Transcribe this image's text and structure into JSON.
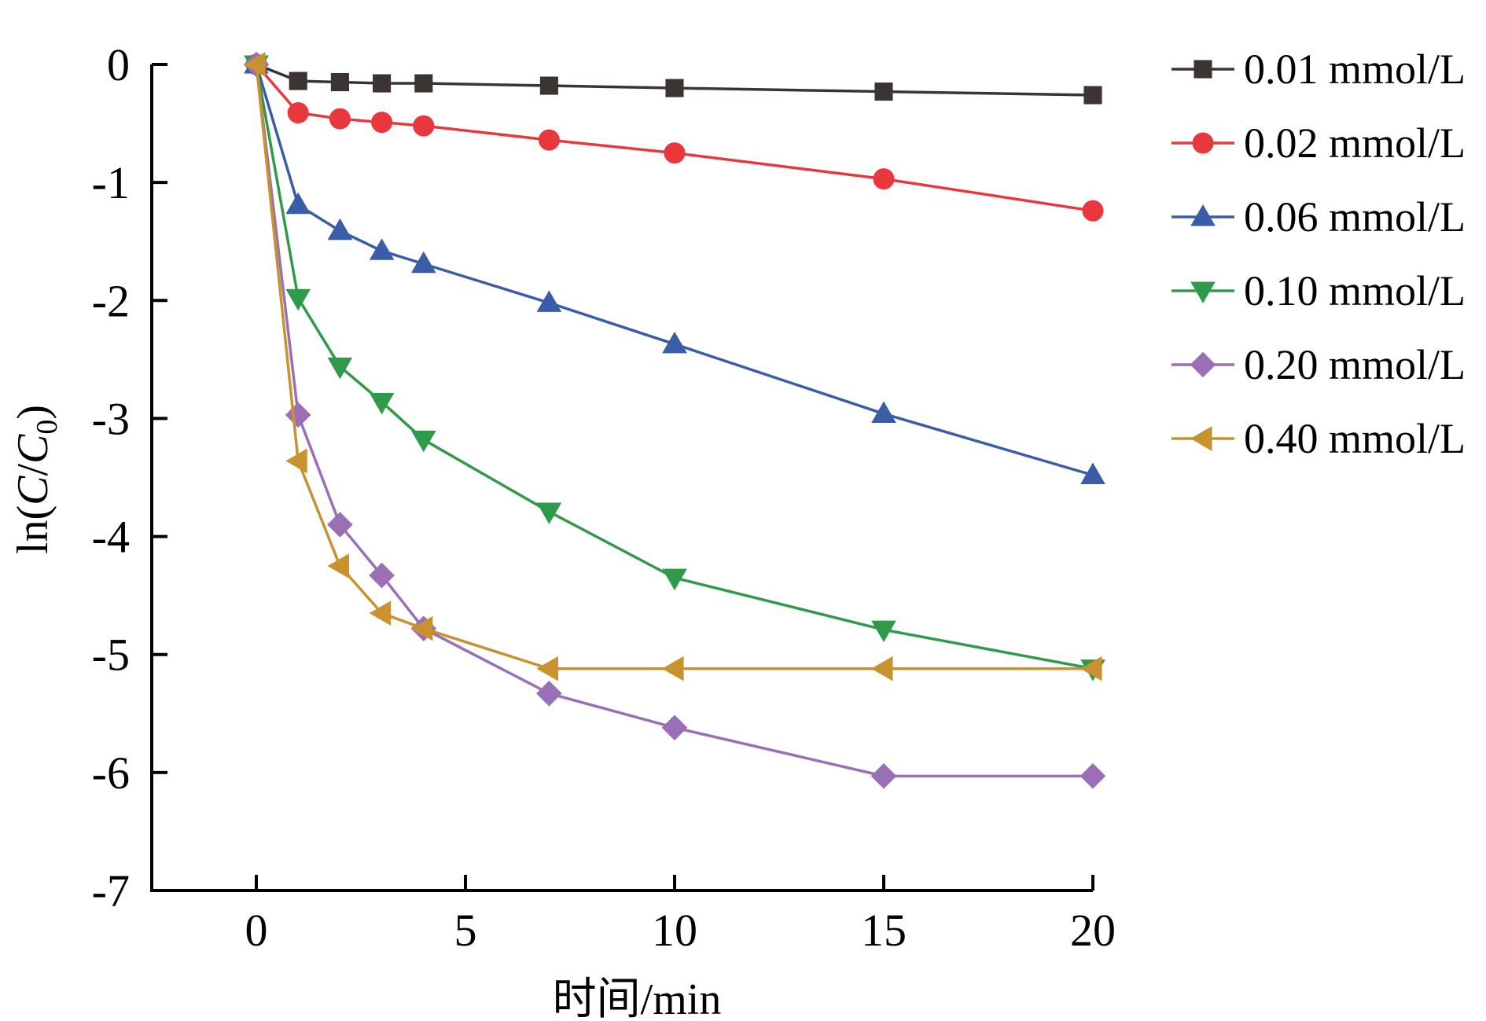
{
  "chart_data": {
    "type": "line",
    "title": "",
    "xlabel": "时间/min",
    "ylabel_parts": {
      "prefix": "ln(",
      "numerator": "C",
      "slash": "/",
      "denominator": "C",
      "denominator_sub": "0",
      "suffix": ")"
    },
    "xlim": [
      -2.5,
      20
    ],
    "ylim": [
      -7,
      0
    ],
    "xticks": [
      0,
      5,
      10,
      15,
      20
    ],
    "xtick_labels": [
      "0",
      "5",
      "10",
      "15",
      "20"
    ],
    "yticks": [
      0,
      -1,
      -2,
      -3,
      -4,
      -5,
      -6,
      -7
    ],
    "ytick_labels": [
      "0",
      "-1",
      "-2",
      "-3",
      "-4",
      "-5",
      "-6",
      "-7"
    ],
    "grid": false,
    "legend_position": "right",
    "x": [
      0,
      1,
      2,
      3,
      4,
      7,
      10,
      15,
      20
    ],
    "series": [
      {
        "name": "0.01 mmol/L",
        "color": "#3c3432",
        "marker": "square",
        "values": [
          0,
          -0.14,
          -0.15,
          -0.16,
          -0.16,
          -0.18,
          -0.2,
          -0.23,
          -0.26
        ]
      },
      {
        "name": "0.02 mmol/L",
        "color": "#e8383d",
        "marker": "circle",
        "values": [
          0,
          -0.41,
          -0.46,
          -0.49,
          -0.52,
          -0.64,
          -0.75,
          -0.97,
          -1.24
        ]
      },
      {
        "name": "0.06 mmol/L",
        "color": "#3a5da8",
        "marker": "triangle-up",
        "values": [
          0,
          -1.19,
          -1.41,
          -1.58,
          -1.69,
          -2.02,
          -2.37,
          -2.96,
          -3.48
        ]
      },
      {
        "name": "0.10 mmol/L",
        "color": "#2e9a4a",
        "marker": "triangle-down",
        "values": [
          0,
          -1.98,
          -2.56,
          -2.86,
          -3.18,
          -3.79,
          -4.35,
          -4.79,
          -5.12
        ]
      },
      {
        "name": "0.20 mmol/L",
        "color": "#9b6fb5",
        "marker": "diamond",
        "values": [
          0,
          -2.97,
          -3.9,
          -4.33,
          -4.78,
          -5.33,
          -5.62,
          -6.03,
          -6.03
        ]
      },
      {
        "name": "0.40 mmol/L",
        "color": "#c8922e",
        "marker": "triangle-left",
        "values": [
          0,
          -3.36,
          -4.25,
          -4.65,
          -4.78,
          -5.12,
          -5.12,
          -5.12,
          -5.12
        ]
      }
    ]
  }
}
